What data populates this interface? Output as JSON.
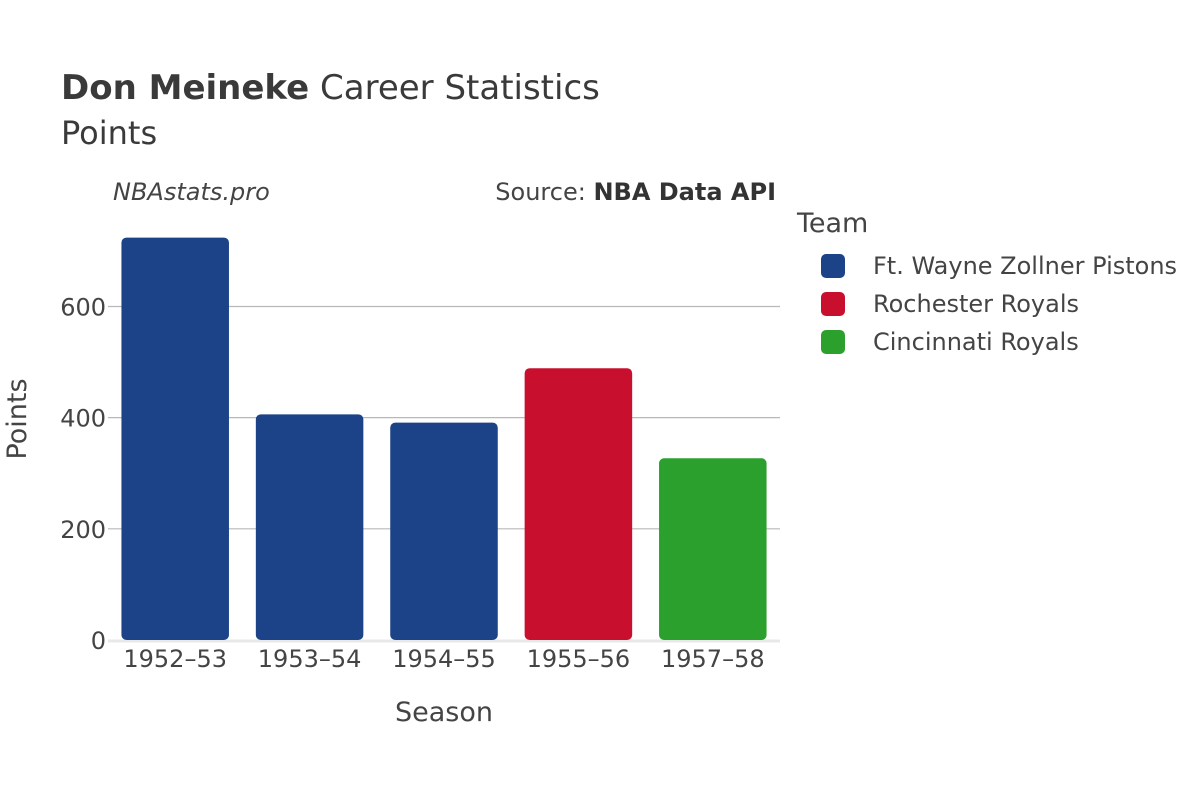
{
  "header": {
    "title_bold": "Don Meineke",
    "title_rest": " Career Statistics",
    "subtitle": "Points"
  },
  "watermark": "NBAstats.pro",
  "source": {
    "prefix": "Source: ",
    "name": "NBA Data API"
  },
  "legend": {
    "title": "Team",
    "items": [
      {
        "label": "Ft. Wayne Zollner Pistons",
        "color": "#1c4388"
      },
      {
        "label": "Rochester Royals",
        "color": "#c8102e"
      },
      {
        "label": "Cincinnati Royals",
        "color": "#2ca02c"
      }
    ]
  },
  "chart_data": {
    "type": "bar",
    "title": "Don Meineke Career Statistics",
    "subtitle": "Points",
    "xlabel": "Season",
    "ylabel": "Points",
    "categories": [
      "1952–53",
      "1953–54",
      "1954–55",
      "1955–56",
      "1957–58"
    ],
    "values": [
      724,
      406,
      391,
      489,
      327
    ],
    "teams": [
      "Ft. Wayne Zollner Pistons",
      "Ft. Wayne Zollner Pistons",
      "Ft. Wayne Zollner Pistons",
      "Rochester Royals",
      "Cincinnati Royals"
    ],
    "ylim": [
      0,
      770
    ],
    "yticks": [
      0,
      200,
      400,
      600
    ],
    "grid": true,
    "legend_position": "right"
  }
}
